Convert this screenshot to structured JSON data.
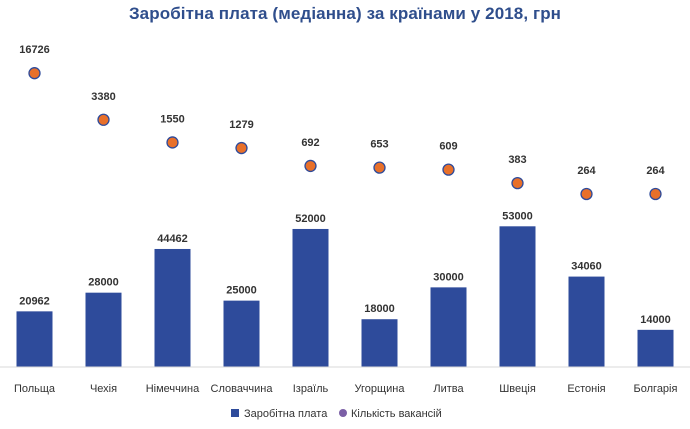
{
  "chart_data": {
    "type": "bar",
    "title": "Заробітна плата (медіанна) за країнами у 2018, грн",
    "categories": [
      "Польща",
      "Чехія",
      "Німеччина",
      "Словаччина",
      "Ізраїль",
      "Угорщина",
      "Литва",
      "Швеція",
      "Естонія",
      "Болгарія"
    ],
    "series": [
      {
        "name": "Заробітна плата",
        "kind": "bar",
        "color": "#2e4b9b",
        "values": [
          20962,
          28000,
          44462,
          25000,
          52000,
          18000,
          30000,
          53000,
          34060,
          14000
        ]
      },
      {
        "name": "Кількість вакансій",
        "kind": "scatter",
        "color": "#e8702a",
        "edge_color": "#2e4b9b",
        "values": [
          16726,
          3380,
          1550,
          1279,
          692,
          653,
          609,
          383,
          264,
          264
        ]
      }
    ],
    "xlabel": "",
    "ylabel": "",
    "grid": false,
    "legend_position": "bottom-center"
  }
}
